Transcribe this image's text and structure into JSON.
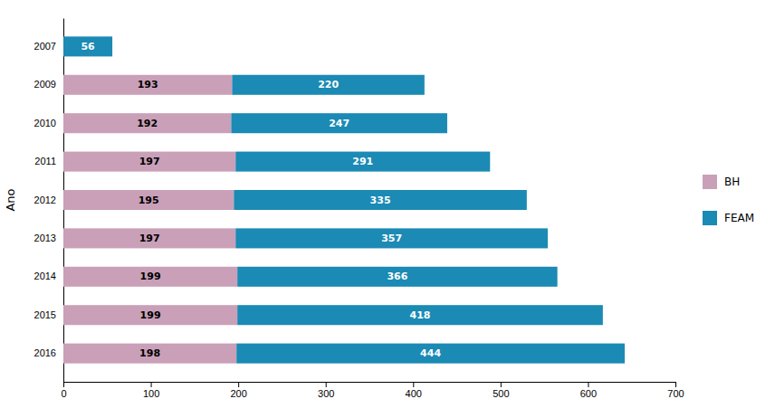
{
  "chart_data": {
    "type": "bar",
    "orientation": "horizontal",
    "stacked": true,
    "data_labels": true,
    "categories": [
      "2007",
      "2009",
      "2010",
      "2011",
      "2012",
      "2013",
      "2014",
      "2015",
      "2016"
    ],
    "series": [
      {
        "name": "BH",
        "color": "#c9a0b8",
        "values": [
          0,
          193,
          192,
          197,
          195,
          197,
          199,
          199,
          198
        ]
      },
      {
        "name": "FEAM",
        "color": "#1b8ab4",
        "values": [
          56,
          220,
          247,
          291,
          335,
          357,
          366,
          418,
          444
        ]
      }
    ],
    "ylabel": "Ano",
    "xlim": [
      0,
      700
    ],
    "xticks": [
      0,
      100,
      200,
      300,
      400,
      500,
      600,
      700
    ],
    "legend": "right"
  }
}
